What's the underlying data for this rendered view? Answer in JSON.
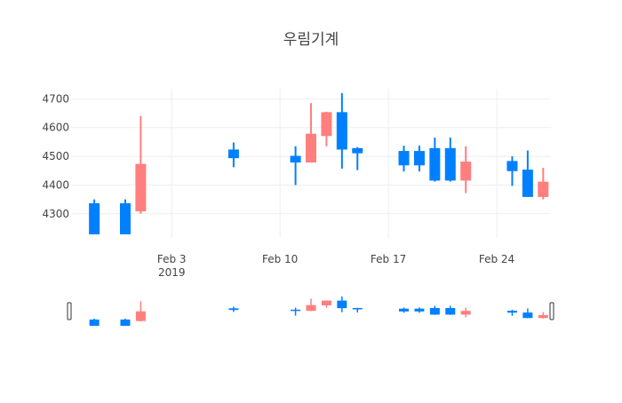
{
  "chart_data": {
    "type": "candlestick",
    "title": "우림기계",
    "xlabel": "",
    "ylabel": "",
    "ylim": [
      4216,
      4735
    ],
    "y_ticks": [
      4300,
      4400,
      4500,
      4600,
      4700
    ],
    "x_range": [
      "2019-01-28",
      "2019-02-27"
    ],
    "x_ticks": [
      {
        "date": "2019-02-03",
        "label": "Feb 3",
        "sublabel": "2019"
      },
      {
        "date": "2019-02-10",
        "label": "Feb 10",
        "sublabel": ""
      },
      {
        "date": "2019-02-17",
        "label": "Feb 17",
        "sublabel": ""
      },
      {
        "date": "2019-02-24",
        "label": "Feb 24",
        "sublabel": ""
      }
    ],
    "grid": true,
    "rangeslider": true,
    "colors": {
      "increasing": "#ff7f7f",
      "decreasing": "#0080ff",
      "grid": "#eeeeee",
      "text": "#444444"
    },
    "candles": [
      {
        "date": "2019-01-29",
        "open": 4335,
        "high": 4350,
        "low": 4230,
        "close": 4230
      },
      {
        "date": "2019-01-31",
        "open": 4335,
        "high": 4350,
        "low": 4230,
        "close": 4230
      },
      {
        "date": "2019-02-01",
        "open": 4310,
        "high": 4640,
        "low": 4300,
        "close": 4472
      },
      {
        "date": "2019-02-07",
        "open": 4522,
        "high": 4548,
        "low": 4462,
        "close": 4495
      },
      {
        "date": "2019-02-11",
        "open": 4500,
        "high": 4535,
        "low": 4400,
        "close": 4480
      },
      {
        "date": "2019-02-12",
        "open": 4480,
        "high": 4685,
        "low": 4478,
        "close": 4577
      },
      {
        "date": "2019-02-13",
        "open": 4572,
        "high": 4655,
        "low": 4535,
        "close": 4652
      },
      {
        "date": "2019-02-14",
        "open": 4652,
        "high": 4720,
        "low": 4457,
        "close": 4525
      },
      {
        "date": "2019-02-15",
        "open": 4527,
        "high": 4532,
        "low": 4452,
        "close": 4512
      },
      {
        "date": "2019-02-18",
        "open": 4517,
        "high": 4537,
        "low": 4447,
        "close": 4470
      },
      {
        "date": "2019-02-19",
        "open": 4517,
        "high": 4537,
        "low": 4447,
        "close": 4470
      },
      {
        "date": "2019-02-20",
        "open": 4527,
        "high": 4565,
        "low": 4412,
        "close": 4417
      },
      {
        "date": "2019-02-21",
        "open": 4527,
        "high": 4565,
        "low": 4412,
        "close": 4417
      },
      {
        "date": "2019-02-22",
        "open": 4417,
        "high": 4535,
        "low": 4372,
        "close": 4480
      },
      {
        "date": "2019-02-25",
        "open": 4482,
        "high": 4500,
        "low": 4397,
        "close": 4450
      },
      {
        "date": "2019-02-26",
        "open": 4452,
        "high": 4520,
        "low": 4360,
        "close": 4360
      },
      {
        "date": "2019-02-27",
        "open": 4360,
        "high": 4460,
        "low": 4350,
        "close": 4410
      }
    ]
  }
}
